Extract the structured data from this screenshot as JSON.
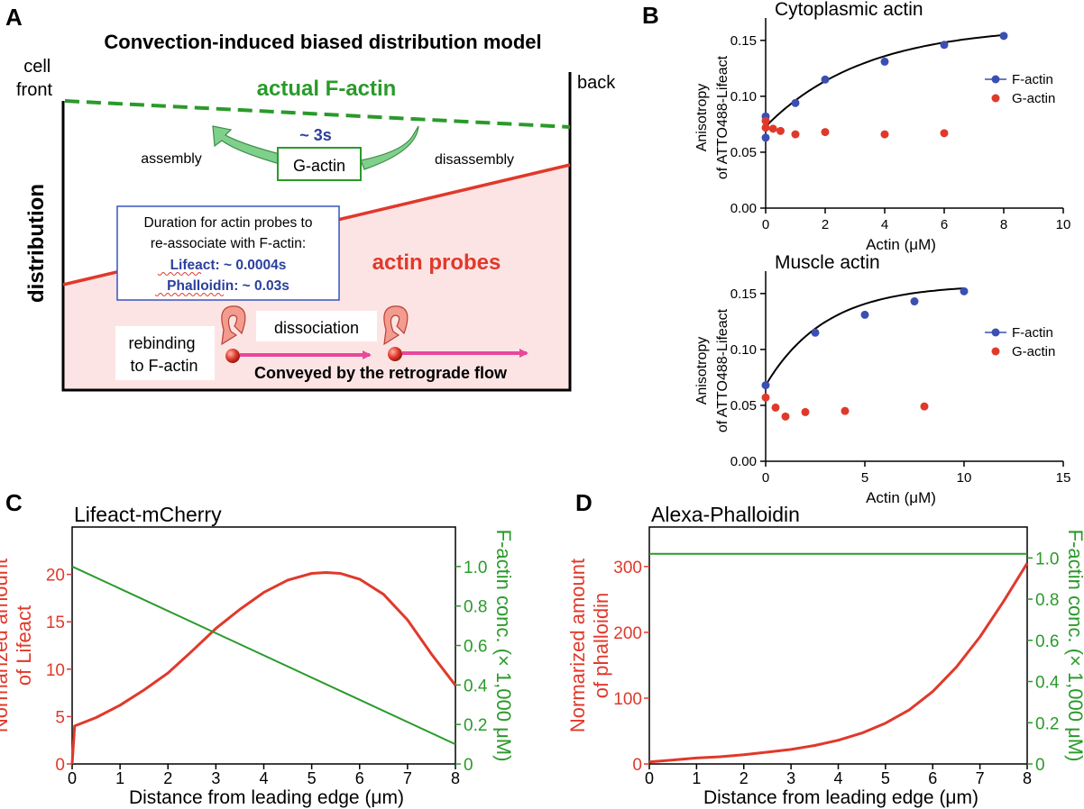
{
  "panelA": {
    "letter": "A",
    "title": "Convection-induced biased distribution model",
    "cell_front": [
      "cell",
      "front"
    ],
    "back": "back",
    "ylabel": "distribution",
    "factin_label": "actual F-actin",
    "time_label": "~ 3s",
    "assembly": "assembly",
    "disassembly": "disassembly",
    "gactin": "G-actin",
    "probes_label": "actin probes",
    "duration_lines": [
      "Duration for actin probes to",
      "re-associate with F-actin:"
    ],
    "lifeact_line": "Lifeact: ~ 0.0004s",
    "phalloidin_line": "Phalloidin: ~ 0.03s",
    "dissociation": "dissociation",
    "rebinding": [
      "rebinding",
      "to F-actin"
    ],
    "conveyed": "Conveyed by the retrograde flow",
    "colors": {
      "factin": "#2a9a2a",
      "probes": "#e0392b",
      "probes_fill": "#fde4e4",
      "box_border": "#3355bb",
      "text_blue": "#2a3f9e"
    }
  },
  "panelB": {
    "letter": "B"
  },
  "panelC": {
    "letter": "C"
  },
  "panelD": {
    "letter": "D"
  },
  "chart_data": [
    {
      "id": "B1",
      "type": "scatter",
      "title": "Cytoplasmic actin",
      "xlabel": "Actin (μM)",
      "ylabel": [
        "Anisotropy",
        "of ATTO488-Lifeact"
      ],
      "xlim": [
        0,
        10
      ],
      "ylim": [
        0,
        0.17
      ],
      "xticks": [
        0,
        2,
        4,
        6,
        8,
        10
      ],
      "yticks": [
        0.0,
        0.05,
        0.1,
        0.15
      ],
      "yticklabels": [
        "0.00",
        "0.05",
        "0.10",
        "0.15"
      ],
      "legend": "right",
      "series": [
        {
          "name": "F-actin",
          "color": "#3a4fb3",
          "x": [
            0,
            0,
            1,
            2,
            4,
            6,
            8
          ],
          "y": [
            0.063,
            0.082,
            0.094,
            0.115,
            0.131,
            0.146,
            0.154
          ]
        },
        {
          "name": "G-actin",
          "color": "#e0392b",
          "x": [
            0,
            0,
            0.25,
            0.5,
            1,
            2,
            4,
            6
          ],
          "y": [
            0.078,
            0.072,
            0.071,
            0.069,
            0.066,
            0.068,
            0.066,
            0.067
          ]
        }
      ],
      "fit": {
        "ymin": 0.073,
        "ymax": 0.163,
        "k": 0.3
      }
    },
    {
      "id": "B2",
      "type": "scatter",
      "title": "Muscle actin",
      "xlabel": "Actin (μM)",
      "ylabel": [
        "Anisotropy",
        "of ATTO488-Lifeact"
      ],
      "xlim": [
        0,
        15
      ],
      "ylim": [
        0,
        0.17
      ],
      "xticks": [
        0,
        5,
        10,
        15
      ],
      "yticks": [
        0.0,
        0.05,
        0.1,
        0.15
      ],
      "yticklabels": [
        "0.00",
        "0.05",
        "0.10",
        "0.15"
      ],
      "legend": "right",
      "series": [
        {
          "name": "F-actin",
          "color": "#3a4fb3",
          "x": [
            0,
            2.5,
            5,
            7.5,
            10
          ],
          "y": [
            0.068,
            0.115,
            0.131,
            0.143,
            0.152
          ]
        },
        {
          "name": "G-actin",
          "color": "#e0392b",
          "x": [
            0,
            0.5,
            1,
            2,
            4,
            8
          ],
          "y": [
            0.057,
            0.048,
            0.04,
            0.044,
            0.045,
            0.049
          ]
        }
      ],
      "fit": {
        "ymin": 0.068,
        "ymax": 0.158,
        "k": 0.33
      }
    },
    {
      "id": "C",
      "type": "line",
      "title": "Lifeact-mCherry",
      "xlabel": "Distance from leading edge (μm)",
      "ylabel": [
        "Normarized amount",
        "of Lifeact"
      ],
      "y2label": "F-actin conc. (× 1,000 μM)",
      "xlim": [
        0,
        8
      ],
      "ylim": [
        0,
        25
      ],
      "y2lim": [
        0,
        1.2
      ],
      "xticks": [
        0,
        1,
        2,
        3,
        4,
        5,
        6,
        7,
        8
      ],
      "yticks": [
        0,
        5,
        10,
        15,
        20
      ],
      "y2ticks": [
        0,
        0.2,
        0.4,
        0.6,
        0.8,
        1.0
      ],
      "y2ticklabels": [
        "0",
        "0.2",
        "0.4",
        "0.6",
        "0.8",
        "1.0"
      ],
      "series": [
        {
          "name": "Lifeact",
          "axis": "left",
          "color": "#e0392b",
          "x": [
            0,
            0.05,
            0.5,
            1,
            1.5,
            2,
            2.5,
            3,
            3.5,
            4,
            4.5,
            5,
            5.3,
            5.6,
            6,
            6.5,
            7,
            7.5,
            8
          ],
          "y": [
            0,
            4.0,
            4.9,
            6.2,
            7.8,
            9.6,
            11.9,
            14.3,
            16.3,
            18.1,
            19.4,
            20.1,
            20.2,
            20.1,
            19.5,
            17.9,
            15.2,
            11.6,
            8.3
          ]
        },
        {
          "name": "F-actin",
          "axis": "right",
          "color": "#2a9a2a",
          "x": [
            0,
            8
          ],
          "y": [
            1.0,
            0.1
          ]
        }
      ]
    },
    {
      "id": "D",
      "type": "line",
      "title": "Alexa-Phalloidin",
      "xlabel": "Distance from leading edge (μm)",
      "ylabel": [
        "Normarized amount",
        "of phalloidin"
      ],
      "y2label": "F-actin conc. (× 1,000 μM)",
      "xlim": [
        0,
        8
      ],
      "ylim": [
        0,
        360
      ],
      "y2lim": [
        0,
        1.15
      ],
      "xticks": [
        0,
        1,
        2,
        3,
        4,
        5,
        6,
        7,
        8
      ],
      "yticks": [
        0,
        100,
        200,
        300
      ],
      "y2ticks": [
        0,
        0.2,
        0.4,
        0.6,
        0.8,
        1.0
      ],
      "y2ticklabels": [
        "0",
        "0.2",
        "0.4",
        "0.6",
        "0.8",
        "1.0"
      ],
      "series": [
        {
          "name": "Phalloidin",
          "axis": "left",
          "color": "#e0392b",
          "x": [
            0,
            0.5,
            1,
            1.5,
            2,
            2.5,
            3,
            3.5,
            4,
            4.5,
            5,
            5.5,
            6,
            6.5,
            7,
            7.5,
            8
          ],
          "y": [
            3,
            6,
            9,
            11,
            14,
            18,
            22,
            28,
            36,
            47,
            62,
            82,
            110,
            147,
            193,
            247,
            305
          ]
        },
        {
          "name": "F-actin",
          "axis": "right",
          "color": "#2a9a2a",
          "x": [
            0,
            8
          ],
          "y": [
            1.02,
            1.02
          ]
        }
      ]
    }
  ]
}
